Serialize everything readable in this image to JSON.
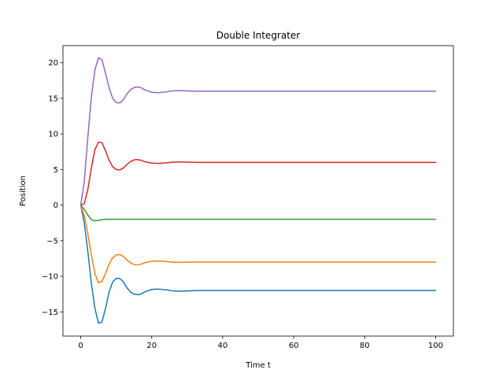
{
  "chart_data": {
    "type": "line",
    "title": "Double Integrater",
    "xlabel": "Time t",
    "ylabel": "Position",
    "xlim": [
      -5,
      105
    ],
    "ylim": [
      -18.4,
      22.4
    ],
    "xticks": [
      0,
      20,
      40,
      60,
      80,
      100
    ],
    "yticks": [
      -15,
      -10,
      -5,
      0,
      5,
      10,
      15,
      20
    ],
    "grid": false,
    "legend": "none",
    "series": [
      {
        "color": "#1f77b4",
        "points": [
          [
            0,
            0
          ],
          [
            1,
            -2.5
          ],
          [
            2,
            -6.5
          ],
          [
            3,
            -11
          ],
          [
            4,
            -14.5
          ],
          [
            5,
            -16.6
          ],
          [
            6,
            -16.4
          ],
          [
            7,
            -14.5
          ],
          [
            8,
            -12.2
          ],
          [
            9,
            -10.8
          ],
          [
            10,
            -10.3
          ],
          [
            11,
            -10.3
          ],
          [
            12,
            -10.8
          ],
          [
            13,
            -11.6
          ],
          [
            14,
            -12.2
          ],
          [
            15,
            -12.5
          ],
          [
            16,
            -12.6
          ],
          [
            17,
            -12.5
          ],
          [
            18,
            -12.2
          ],
          [
            20,
            -11.85
          ],
          [
            22,
            -11.8
          ],
          [
            24,
            -11.9
          ],
          [
            26,
            -12.05
          ],
          [
            28,
            -12.1
          ],
          [
            30,
            -12.05
          ],
          [
            33,
            -12.0
          ],
          [
            36,
            -12.0
          ],
          [
            40,
            -12.0
          ],
          [
            60,
            -12.0
          ],
          [
            80,
            -12.0
          ],
          [
            100,
            -12.0
          ]
        ]
      },
      {
        "color": "#ff7f0e",
        "points": [
          [
            0,
            0
          ],
          [
            1,
            -1.5
          ],
          [
            2,
            -4
          ],
          [
            3,
            -7
          ],
          [
            4,
            -9.6
          ],
          [
            5,
            -10.9
          ],
          [
            6,
            -10.7
          ],
          [
            7,
            -9.6
          ],
          [
            8,
            -8.3
          ],
          [
            9,
            -7.4
          ],
          [
            10,
            -7.0
          ],
          [
            11,
            -6.95
          ],
          [
            12,
            -7.2
          ],
          [
            13,
            -7.7
          ],
          [
            14,
            -8.1
          ],
          [
            15,
            -8.35
          ],
          [
            16,
            -8.4
          ],
          [
            17,
            -8.3
          ],
          [
            18,
            -8.1
          ],
          [
            20,
            -7.9
          ],
          [
            22,
            -7.85
          ],
          [
            24,
            -7.92
          ],
          [
            26,
            -8.02
          ],
          [
            28,
            -8.05
          ],
          [
            30,
            -8.02
          ],
          [
            33,
            -8.0
          ],
          [
            40,
            -8.0
          ],
          [
            60,
            -8.0
          ],
          [
            80,
            -8.0
          ],
          [
            100,
            -8.0
          ]
        ]
      },
      {
        "color": "#2ca02c",
        "points": [
          [
            0,
            0
          ],
          [
            1,
            -0.6
          ],
          [
            2,
            -1.4
          ],
          [
            3,
            -2.05
          ],
          [
            4,
            -2.2
          ],
          [
            5,
            -2.15
          ],
          [
            6,
            -2.05
          ],
          [
            7,
            -2.0
          ],
          [
            8,
            -2.0
          ],
          [
            10,
            -2.0
          ],
          [
            20,
            -2.0
          ],
          [
            40,
            -2.0
          ],
          [
            60,
            -2.0
          ],
          [
            80,
            -2.0
          ],
          [
            100,
            -2.0
          ]
        ]
      },
      {
        "color": "#d62728",
        "points": [
          [
            0,
            0
          ],
          [
            1,
            0.2
          ],
          [
            2,
            2.2
          ],
          [
            3,
            5.2
          ],
          [
            4,
            7.8
          ],
          [
            5,
            8.85
          ],
          [
            6,
            8.75
          ],
          [
            7,
            7.6
          ],
          [
            8,
            6.3
          ],
          [
            9,
            5.4
          ],
          [
            10,
            5.0
          ],
          [
            11,
            4.95
          ],
          [
            12,
            5.2
          ],
          [
            13,
            5.7
          ],
          [
            14,
            6.1
          ],
          [
            15,
            6.35
          ],
          [
            16,
            6.4
          ],
          [
            17,
            6.3
          ],
          [
            18,
            6.1
          ],
          [
            20,
            5.9
          ],
          [
            22,
            5.85
          ],
          [
            24,
            5.93
          ],
          [
            26,
            6.03
          ],
          [
            28,
            6.06
          ],
          [
            30,
            6.03
          ],
          [
            33,
            6.0
          ],
          [
            40,
            6.0
          ],
          [
            60,
            6.0
          ],
          [
            80,
            6.0
          ],
          [
            100,
            6.0
          ]
        ]
      },
      {
        "color": "#9467bd",
        "points": [
          [
            0,
            0
          ],
          [
            1,
            3.3
          ],
          [
            2,
            9.5
          ],
          [
            3,
            15.2
          ],
          [
            4,
            19.0
          ],
          [
            5,
            20.7
          ],
          [
            6,
            20.4
          ],
          [
            7,
            18.5
          ],
          [
            8,
            16.5
          ],
          [
            9,
            15.0
          ],
          [
            10,
            14.4
          ],
          [
            11,
            14.35
          ],
          [
            12,
            14.8
          ],
          [
            13,
            15.6
          ],
          [
            14,
            16.2
          ],
          [
            15,
            16.5
          ],
          [
            16,
            16.6
          ],
          [
            17,
            16.5
          ],
          [
            18,
            16.2
          ],
          [
            20,
            15.85
          ],
          [
            22,
            15.8
          ],
          [
            24,
            15.9
          ],
          [
            26,
            16.05
          ],
          [
            28,
            16.08
          ],
          [
            30,
            16.04
          ],
          [
            33,
            16.0
          ],
          [
            40,
            16.0
          ],
          [
            60,
            16.0
          ],
          [
            80,
            16.0
          ],
          [
            100,
            16.0
          ]
        ]
      }
    ]
  }
}
